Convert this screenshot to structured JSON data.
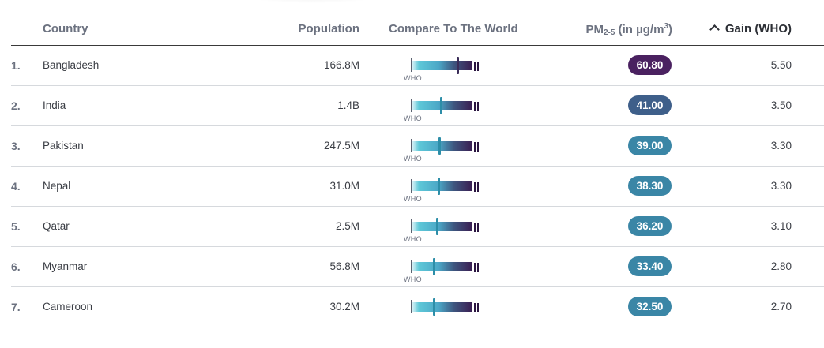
{
  "header": {
    "country": "Country",
    "population": "Population",
    "compare": "Compare To The World",
    "pm_prefix": "PM",
    "pm_sub": "2-5",
    "pm_mid": " (in µg/m",
    "pm_sup": "3",
    "pm_suffix": ")",
    "gain": "Gain (WHO)"
  },
  "who_label": "WHO",
  "colors": {
    "badge_dark": "#4a2160",
    "badge_mid": "#3e5f8a",
    "badge_light": "#3a86a6",
    "marker_dark": "#3a2c58",
    "marker_light": "#2d8ea8"
  },
  "rows": [
    {
      "rank": "1.",
      "country": "Bangladesh",
      "population": "166.8M",
      "pm": "60.80",
      "gain": "5.50",
      "compare_level": 0.755,
      "badge": "badge_dark",
      "show_who": true
    },
    {
      "rank": "2.",
      "country": "India",
      "population": "1.4B",
      "pm": "41.00",
      "gain": "3.50",
      "compare_level": 0.48,
      "badge": "badge_mid",
      "show_who": true
    },
    {
      "rank": "3.",
      "country": "Pakistan",
      "population": "247.5M",
      "pm": "39.00",
      "gain": "3.30",
      "compare_level": 0.45,
      "badge": "badge_light",
      "show_who": true
    },
    {
      "rank": "4.",
      "country": "Nepal",
      "population": "31.0M",
      "pm": "38.30",
      "gain": "3.30",
      "compare_level": 0.44,
      "badge": "badge_light",
      "show_who": true
    },
    {
      "rank": "5.",
      "country": "Qatar",
      "population": "2.5M",
      "pm": "36.20",
      "gain": "3.10",
      "compare_level": 0.41,
      "badge": "badge_light",
      "show_who": true
    },
    {
      "rank": "6.",
      "country": "Myanmar",
      "population": "56.8M",
      "pm": "33.40",
      "gain": "2.80",
      "compare_level": 0.37,
      "badge": "badge_light",
      "show_who": true
    },
    {
      "rank": "7.",
      "country": "Cameroon",
      "population": "30.2M",
      "pm": "32.50",
      "gain": "2.70",
      "compare_level": 0.36,
      "badge": "badge_light",
      "show_who": false
    }
  ]
}
